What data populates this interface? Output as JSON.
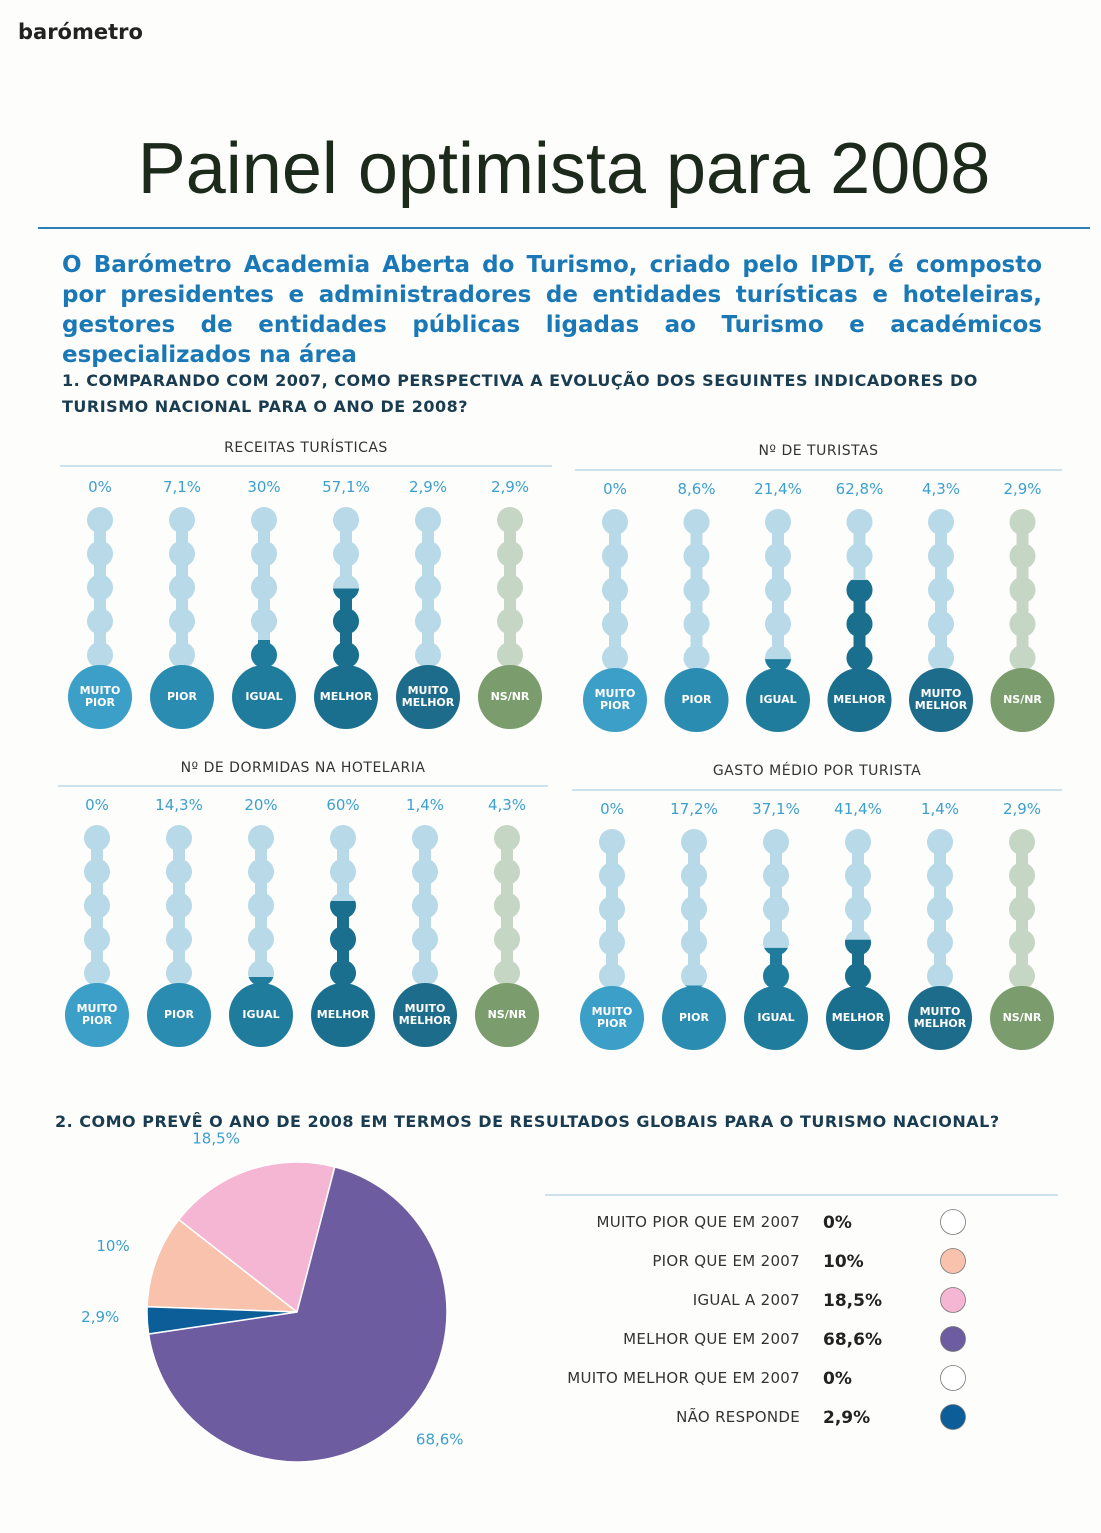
{
  "header": {
    "section": "barómetro",
    "title": "Painel optimista para 2008",
    "lead": "O Barómetro Academia Aberta do Turismo, criado pelo IPDT, é composto por presidentes e administradores de entidades turísticas e hoteleiras, gestores de entidades públicas ligadas ao Turismo e académicos especializados na área"
  },
  "question1": "1. COMPARANDO COM 2007, COMO PERSPECTIVA A EVOLUÇÃO DOS SEGUINTES INDICADORES DO TURISMO NACIONAL PARA O ANO DE 2008?",
  "question2": "2. COMO PREVÊ O ANO DE 2008 EM TERMOS DE RESULTADOS GLOBAIS PARA O TURISMO NACIONAL?",
  "chart_data": [
    {
      "type": "thermometer",
      "title": "RECEITAS TURÍSTICAS",
      "categories": [
        "MUITO PIOR",
        "PIOR",
        "IGUAL",
        "MELHOR",
        "MUITO MELHOR",
        "NS/NR"
      ],
      "values": [
        0,
        7.1,
        30,
        57.1,
        2.9,
        2.9
      ],
      "value_labels": [
        "0%",
        "7,1%",
        "30%",
        "57,1%",
        "2,9%",
        "2,9%"
      ],
      "colors": [
        "#3b9fc8",
        "#2b8cb2",
        "#1f7c9d",
        "#1a6f8f",
        "#1d6c8b",
        "#7b9c6c"
      ]
    },
    {
      "type": "thermometer",
      "title": "Nº DE TURISTAS",
      "categories": [
        "MUITO PIOR",
        "PIOR",
        "IGUAL",
        "MELHOR",
        "MUITO MELHOR",
        "NS/NR"
      ],
      "values": [
        0,
        8.6,
        21.4,
        62.8,
        4.3,
        2.9
      ],
      "value_labels": [
        "0%",
        "8,6%",
        "21,4%",
        "62,8%",
        "4,3%",
        "2,9%"
      ],
      "colors": [
        "#3b9fc8",
        "#2b8cb2",
        "#1f7c9d",
        "#1a6f8f",
        "#1d6c8b",
        "#7b9c6c"
      ]
    },
    {
      "type": "thermometer",
      "title": "Nº DE DORMIDAS NA HOTELARIA",
      "categories": [
        "MUITO PIOR",
        "PIOR",
        "IGUAL",
        "MELHOR",
        "MUITO MELHOR",
        "NS/NR"
      ],
      "values": [
        0,
        14.3,
        20,
        60,
        1.4,
        4.3
      ],
      "value_labels": [
        "0%",
        "14,3%",
        "20%",
        "60%",
        "1,4%",
        "4,3%"
      ],
      "colors": [
        "#3b9fc8",
        "#2b8cb2",
        "#1f7c9d",
        "#1a6f8f",
        "#1d6c8b",
        "#7b9c6c"
      ]
    },
    {
      "type": "thermometer",
      "title": "GASTO MÉDIO POR TURISTA",
      "categories": [
        "MUITO PIOR",
        "PIOR",
        "IGUAL",
        "MELHOR",
        "MUITO MELHOR",
        "NS/NR"
      ],
      "values": [
        0,
        17.2,
        37.1,
        41.4,
        1.4,
        2.9
      ],
      "value_labels": [
        "0%",
        "17,2%",
        "37,1%",
        "41,4%",
        "1,4%",
        "2,9%"
      ],
      "colors": [
        "#3b9fc8",
        "#2b8cb2",
        "#1f7c9d",
        "#1a6f8f",
        "#1d6c8b",
        "#7b9c6c"
      ]
    },
    {
      "type": "pie",
      "categories": [
        "MUITO PIOR QUE EM 2007",
        "PIOR QUE EM 2007",
        "IGUAL A 2007",
        "MELHOR QUE EM 2007",
        "MUITO MELHOR QUE EM 2007",
        "NÃO RESPONDE"
      ],
      "values": [
        0,
        10,
        18.5,
        68.6,
        0,
        2.9
      ],
      "value_labels": [
        "0%",
        "10%",
        "18,5%",
        "68,6%",
        "0%",
        "2,9%"
      ],
      "colors": [
        "#ffffff",
        "#f8c2ac",
        "#f4b6d2",
        "#6d5c9f",
        "#ffffff",
        "#0b5e98"
      ]
    }
  ]
}
